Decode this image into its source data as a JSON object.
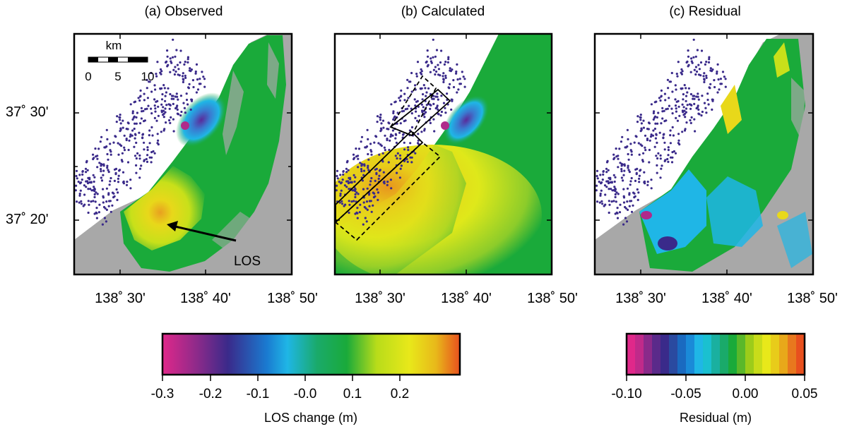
{
  "panels": [
    {
      "title": "(a) Observed"
    },
    {
      "title": "(b) Calculated"
    },
    {
      "title": "(c) Residual"
    }
  ],
  "latitude_labels": [
    "37˚ 30'",
    "37˚ 20'"
  ],
  "longitude_labels": [
    "138˚ 30'",
    "138˚ 40'",
    "138˚ 50'"
  ],
  "scale_bar": {
    "unit": "km",
    "ticks": [
      "0",
      "5",
      "10"
    ]
  },
  "annotation": {
    "los_label": "LOS"
  },
  "colorbars": [
    {
      "title": "LOS change (m)",
      "ticks": [
        "-0.3",
        "-0.2",
        "-0.1",
        "-0.0",
        "0.1",
        "0.2"
      ]
    },
    {
      "title": "Residual (m)",
      "ticks": [
        "-0.10",
        "-0.05",
        "0.00",
        "0.05"
      ]
    }
  ],
  "colors": {
    "uplift_yellow": "#e8e81a",
    "subsidence_blue": "#1fb6e6",
    "zero_green": "#1aaa3a",
    "land_gray": "#a8a8a8",
    "seismicity_purple": "#3a2a8a",
    "magenta": "#e0288a",
    "orange": "#e8641e"
  }
}
